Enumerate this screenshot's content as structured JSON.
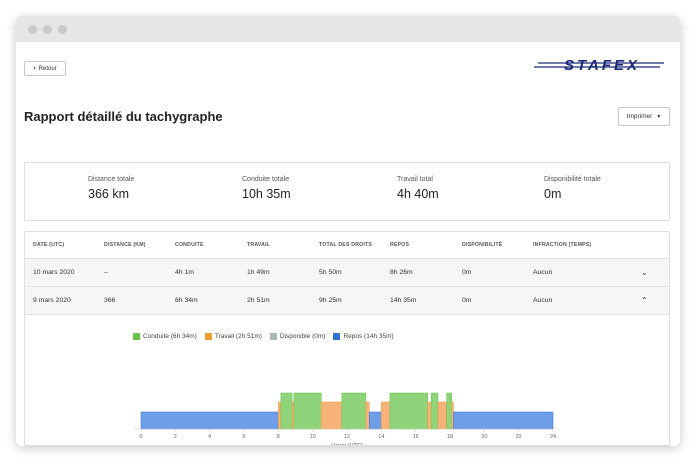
{
  "header": {
    "back_label": "Retour",
    "title": "Rapport détaillé du tachygraphe",
    "print_label": "Imprimer",
    "logo_text": "STAFEX"
  },
  "summary": [
    {
      "label": "Distance totale",
      "value": "366 km"
    },
    {
      "label": "Conduite totale",
      "value": "10h 35m"
    },
    {
      "label": "Travail total",
      "value": "4h 40m"
    },
    {
      "label": "Disponibilité totale",
      "value": "0m"
    }
  ],
  "table": {
    "columns": [
      "Date (UTC)",
      "Distance (km)",
      "Conduite",
      "Travail",
      "Total des droits",
      "Repos",
      "Disponibilité",
      "Infraction (temps)"
    ],
    "rows": [
      {
        "date": "10 mars 2020",
        "distance": "–",
        "conduite": "4h 1m",
        "travail": "1h 49m",
        "total": "5h 50m",
        "repos": "8h 26m",
        "disponibilite": "0m",
        "infraction": "Aucun",
        "expanded": false
      },
      {
        "date": "9 mars 2020",
        "distance": "366",
        "conduite": "6h 34m",
        "travail": "2h 51m",
        "total": "9h 25m",
        "repos": "14h 35m",
        "disponibilite": "0m",
        "infraction": "Aucun",
        "expanded": true
      }
    ]
  },
  "chart_data": {
    "type": "bar",
    "xlabel": "Heure (UTC)",
    "xlim": [
      0,
      24
    ],
    "xticks": [
      0,
      2,
      4,
      6,
      8,
      10,
      12,
      14,
      16,
      18,
      20,
      22,
      24
    ],
    "legend": [
      {
        "name": "Conduite (6h 34m)",
        "color": "#6cc24a"
      },
      {
        "name": "Travail (2h 51m)",
        "color": "#f39c2e"
      },
      {
        "name": "Disponible (0m)",
        "color": "#a9b8b8"
      },
      {
        "name": "Repos (14h 35m)",
        "color": "#2f6fd6"
      }
    ],
    "segments": [
      {
        "type": "repos",
        "start": 0.0,
        "end": 8.0
      },
      {
        "type": "travail",
        "start": 8.0,
        "end": 8.15
      },
      {
        "type": "conduite",
        "start": 8.15,
        "end": 8.8
      },
      {
        "type": "travail",
        "start": 8.8,
        "end": 8.9
      },
      {
        "type": "conduite",
        "start": 8.9,
        "end": 10.5
      },
      {
        "type": "travail",
        "start": 10.5,
        "end": 11.7
      },
      {
        "type": "conduite",
        "start": 11.7,
        "end": 13.1
      },
      {
        "type": "travail",
        "start": 13.1,
        "end": 13.3
      },
      {
        "type": "repos",
        "start": 13.3,
        "end": 14.0
      },
      {
        "type": "travail",
        "start": 14.0,
        "end": 14.5
      },
      {
        "type": "conduite",
        "start": 14.5,
        "end": 16.7
      },
      {
        "type": "travail",
        "start": 16.7,
        "end": 16.9
      },
      {
        "type": "conduite",
        "start": 16.9,
        "end": 17.3
      },
      {
        "type": "travail",
        "start": 17.3,
        "end": 17.8
      },
      {
        "type": "conduite",
        "start": 17.8,
        "end": 18.1
      },
      {
        "type": "travail",
        "start": 18.1,
        "end": 18.2
      },
      {
        "type": "repos",
        "start": 18.2,
        "end": 24.0
      }
    ]
  }
}
